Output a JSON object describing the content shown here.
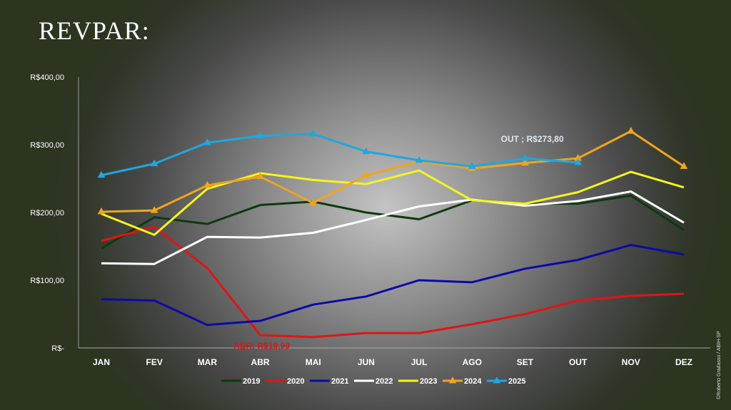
{
  "title": "REVPAR:",
  "watermark": "©Roberto Gradasso / ABIH-SP",
  "chart_data": {
    "type": "line",
    "title": "REVPAR:",
    "xlabel": "",
    "ylabel": "",
    "ylim": [
      0,
      400
    ],
    "y_ticks": [
      0,
      100,
      200,
      300,
      400
    ],
    "y_tick_labels": [
      "R$-",
      "R$100,00",
      "R$200,00",
      "R$300,00",
      "R$400,00"
    ],
    "categories": [
      "JAN",
      "FEV",
      "MAR",
      "ABR",
      "MAI",
      "JUN",
      "JUL",
      "AGO",
      "SET",
      "OUT",
      "NOV",
      "DEZ"
    ],
    "legend_position": "bottom",
    "grid": false,
    "series": [
      {
        "name": "2019",
        "color": "#0d3a0d",
        "marker": "none",
        "values": [
          147,
          193,
          183,
          211,
          216,
          200,
          190,
          218,
          213,
          213,
          225,
          174
        ]
      },
      {
        "name": "2020",
        "color": "#e01515",
        "marker": "none",
        "values": [
          158,
          179,
          118,
          18.99,
          16,
          22,
          22,
          35,
          50,
          70,
          77,
          80
        ]
      },
      {
        "name": "2021",
        "color": "#0a0aa8",
        "marker": "none",
        "values": [
          72,
          70,
          34,
          40,
          64,
          76,
          100,
          97,
          117,
          130,
          152,
          138
        ]
      },
      {
        "name": "2022",
        "color": "#ffffff",
        "marker": "none",
        "values": [
          125,
          124,
          164,
          163,
          170,
          189,
          209,
          219,
          210,
          217,
          231,
          185
        ]
      },
      {
        "name": "2023",
        "color": "#f5f51a",
        "marker": "none",
        "values": [
          198,
          167,
          235,
          258,
          248,
          242,
          262,
          218,
          213,
          230,
          260,
          237
        ]
      },
      {
        "name": "2024",
        "color": "#f0a51c",
        "marker": "triangle",
        "values": [
          201,
          203,
          240,
          253,
          214,
          255,
          275,
          265,
          273,
          280,
          320,
          268
        ]
      },
      {
        "name": "2025",
        "color": "#1fa7e0",
        "marker": "triangle",
        "values": [
          255,
          272,
          303,
          313,
          316,
          290,
          277,
          268,
          280,
          273.8,
          null,
          null
        ]
      }
    ],
    "annotations": [
      {
        "text": "OUT ; R$273,80",
        "series": "2025",
        "category": "OUT",
        "color": "#dde6f0"
      },
      {
        "text": "ABR; R$18,99",
        "series": "2020",
        "category": "ABR",
        "color": "#e01515"
      }
    ]
  }
}
